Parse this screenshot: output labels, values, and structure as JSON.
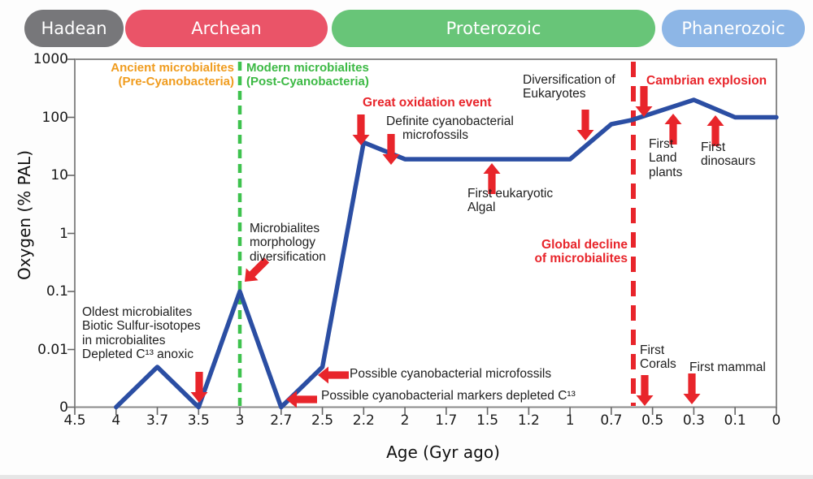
{
  "eras": [
    {
      "label": "Hadean",
      "color": "#77777a"
    },
    {
      "label": "Archean",
      "color": "#ea5468"
    },
    {
      "label": "Proterozoic",
      "color": "#68c578"
    },
    {
      "label": "Phanerozoic",
      "color": "#8db6e6"
    }
  ],
  "colors": {
    "red": "#e8252b",
    "curve": "#2b4ea3",
    "green_dashed": "#3ec24e",
    "orange": "#f09c1e",
    "green_text": "#3cb944",
    "axis": "#8a8a8a"
  },
  "chart_data": {
    "type": "line",
    "title": "",
    "xlabel": "Age (Gyr ago)",
    "ylabel": "Oxygen (% PAL)",
    "x_ticks": [
      "4.5",
      "4",
      "3.7",
      "3.5",
      "3",
      "2.7",
      "2.5",
      "2.2",
      "2",
      "1.7",
      "1.5",
      "1.2",
      "1",
      "0.7",
      "0.5",
      "0.3",
      "0.1",
      "0"
    ],
    "y_ticks": [
      "1000",
      "100",
      "10",
      "1",
      "0.1",
      "0.01",
      "0"
    ],
    "y_scale": "log10, decades 1000 to 0.01, with 0 floor at axis",
    "grid": false,
    "legend": "none",
    "series": [
      {
        "name": "Oxygen (% PAL)",
        "points": [
          {
            "age": 4.0,
            "value": 0
          },
          {
            "age": 3.7,
            "value": 0.005
          },
          {
            "age": 3.5,
            "value": 0
          },
          {
            "age": 3.0,
            "value": 0.1
          },
          {
            "age": 2.7,
            "value": 0
          },
          {
            "age": 2.5,
            "value": 0.005
          },
          {
            "age": 2.2,
            "value": 37
          },
          {
            "age": 2.0,
            "value": 19
          },
          {
            "age": 1.0,
            "value": 19
          },
          {
            "age": 0.7,
            "value": 76
          },
          {
            "age": 0.6,
            "value": 90
          },
          {
            "age": 0.3,
            "value": 200
          },
          {
            "age": 0.1,
            "value": 100
          },
          {
            "age": 0.0,
            "value": 100
          }
        ]
      }
    ],
    "reference_lines": [
      {
        "style": "green dashed vertical",
        "age": 3.0
      },
      {
        "style": "red dashed vertical",
        "age": 0.6
      }
    ]
  },
  "annotations": {
    "ancient": "Ancient microbialites\n(Pre-Cyanobacteria)",
    "modern": "Modern microbialites\n(Post-Cyanobacteria)",
    "great_oxidation": "Great oxidation event",
    "definite_microfossils": "Definite cyanobacterial\nmicrofossils",
    "first_eukaryotic": "First eukaryotic\nAlgal",
    "diversification": "Diversification of\nEukaryotes",
    "cambrian": "Cambrian explosion",
    "global_decline": "Global decline\nof microbialites",
    "morphology": "Microbialites\nmorphology\ndiversification",
    "oldest": "Oldest microbialites\nBiotic Sulfur-isotopes\nin microbialites\nDepleted C¹³ anoxic",
    "possible_microfossils": "Possible cyanobacterial microfossils",
    "possible_markers": "Possible cyanobacterial markers depleted C¹³",
    "first_land_plants": "First\nLand\nplants",
    "first_dinosaurs": "First\ndinosaurs",
    "first_corals": "First\nCorals",
    "first_mammal": "First mammal"
  }
}
